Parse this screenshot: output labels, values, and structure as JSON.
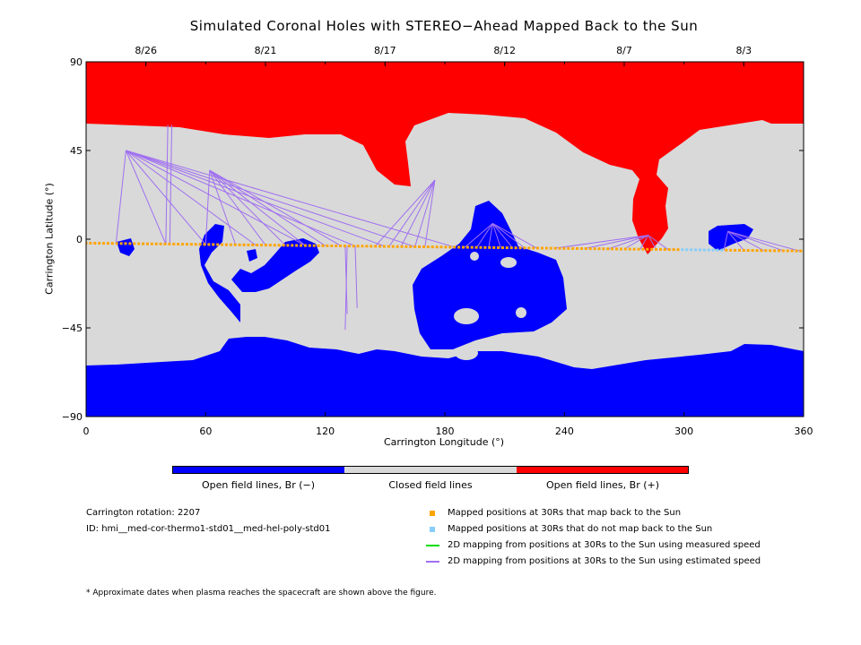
{
  "title": "Simulated Coronal Holes with STEREO−Ahead Mapped Back to the Sun",
  "chart_data": {
    "type": "heatmap",
    "xlabel": "Carrington Longitude (°)",
    "ylabel": "Carrington Latitude (°)",
    "xlim": [
      0,
      360
    ],
    "ylim": [
      -90,
      90
    ],
    "xticks": [
      0,
      60,
      120,
      180,
      240,
      300,
      360
    ],
    "yticks": [
      90,
      45,
      0,
      -45,
      -90
    ],
    "top_axis_dates": [
      {
        "label": "8/26",
        "lon": 30
      },
      {
        "label": "8/21",
        "lon": 90
      },
      {
        "label": "8/17",
        "lon": 150
      },
      {
        "label": "8/12",
        "lon": 210
      },
      {
        "label": "8/7",
        "lon": 270
      },
      {
        "label": "8/3",
        "lon": 330
      }
    ],
    "categories": [
      {
        "name": "Open field lines, Br (−)",
        "color": "#0000ff"
      },
      {
        "name": "Closed field lines",
        "color": "#d9d9d9"
      },
      {
        "name": "Open field lines, Br (+)",
        "color": "#ff0000"
      }
    ],
    "mapped_positions": {
      "maps_back_lon_range": [
        0,
        298
      ],
      "no_map_lon_range": [
        298,
        320
      ],
      "lat_at_0": -2,
      "lat_at_360": -6
    },
    "grid": false
  },
  "colorbar": {
    "neg_color": "#0000ff",
    "closed_color": "#d9d9d9",
    "pos_color": "#ff0000",
    "neg_label": "Open field lines, Br (−)",
    "closed_label": "Closed field lines",
    "pos_label": "Open field lines, Br (+)"
  },
  "info": {
    "rotation": "Carrington rotation: 2207",
    "id": "ID: hmi__med-cor-thermo1-std01__med-hel-poly-std01"
  },
  "legend": [
    {
      "label": "Mapped positions at 30Rs that map back to the Sun",
      "color": "#ffa500",
      "marker": "square"
    },
    {
      "label": "Mapped positions at 30Rs that do not map back to the Sun",
      "color": "#87cefa",
      "marker": "square"
    },
    {
      "label": "2D mapping from positions at 30Rs to the Sun using measured speed",
      "color": "#00dd00",
      "marker": "line"
    },
    {
      "label": "2D mapping from positions at 30Rs to the Sun using estimated speed",
      "color": "#a070f0",
      "marker": "line"
    }
  ],
  "footnote": "* Approximate dates when plasma reaches the spacecraft are shown above the figure."
}
